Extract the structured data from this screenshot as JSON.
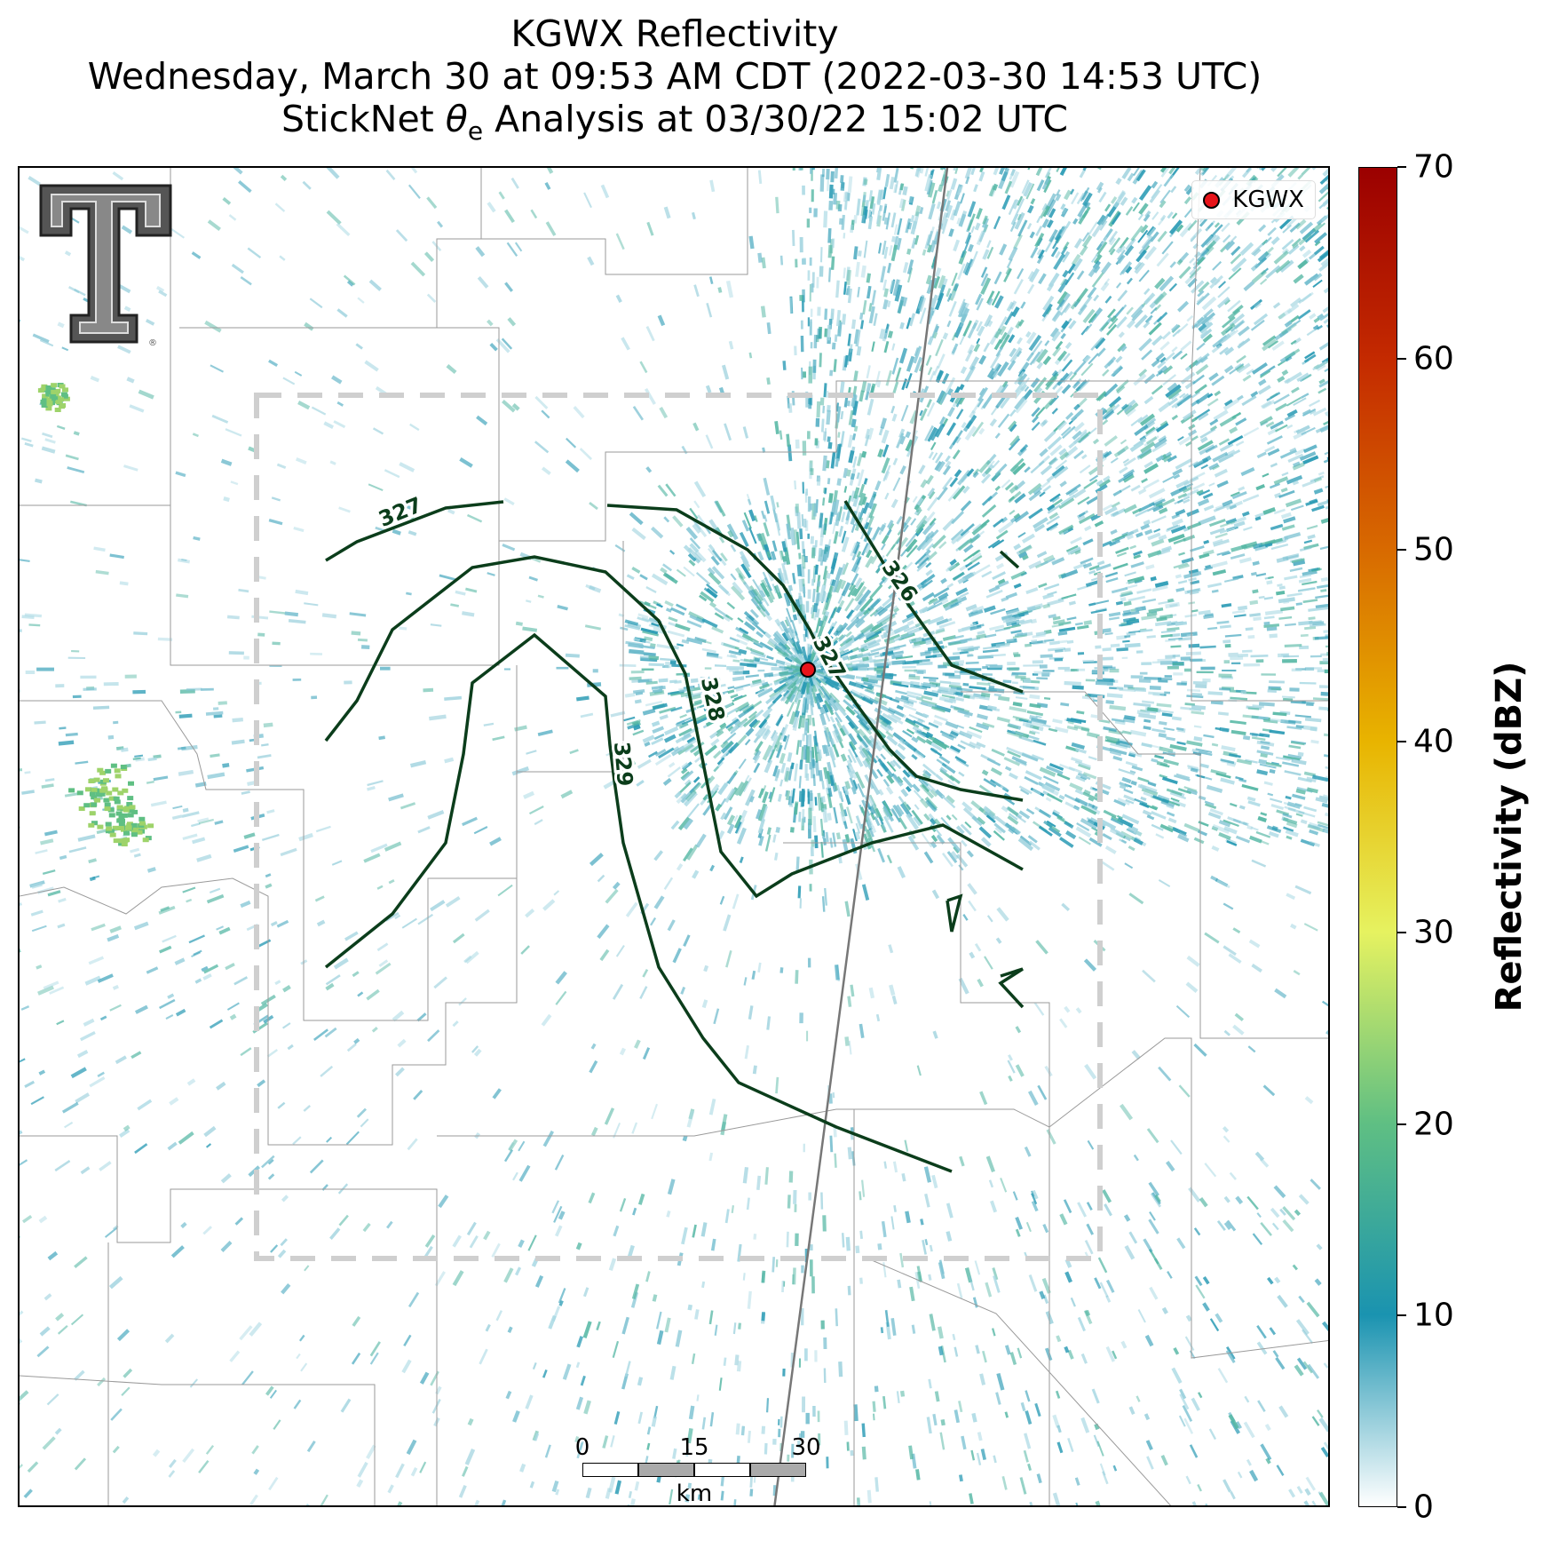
{
  "titles": {
    "line1": "KGWX Reflectivity",
    "line2": "Wednesday, March 30 at 09:53 AM CDT (2022-03-30 14:53 UTC)",
    "line3_prefix": "StickNet ",
    "line3_symbol": "θ",
    "line3_subscript": "e",
    "line3_suffix": " Analysis at 03/30/22 15:02 UTC"
  },
  "legend": {
    "label": "KGWX"
  },
  "radar_site": {
    "name": "KGWX",
    "color": "#e8141a"
  },
  "contours": {
    "color": "#0b3d1b",
    "labels": [
      "327",
      "326",
      "327",
      "328",
      "329"
    ]
  },
  "scale_bar": {
    "ticks": [
      "0",
      "15",
      "30"
    ],
    "unit": "km"
  },
  "colorbar": {
    "title": "Reflectivity (dBZ)",
    "ticks": [
      "0",
      "10",
      "20",
      "30",
      "40",
      "50",
      "60",
      "70"
    ],
    "min": 0,
    "max": 70,
    "colors": [
      "#ffffff",
      "#1a93b0",
      "#5fbf83",
      "#e6f260",
      "#e8b400",
      "#d86a00",
      "#c42a00",
      "#9b0000"
    ]
  },
  "logo": {
    "name": "Texas Tech double-T logo",
    "mark": "®"
  },
  "colors": {
    "echo_primary": "#2a9bb5",
    "echo_secondary": "#56b8a5",
    "echo_strong": "#9ed36a",
    "analysis_box": "#c8c8c8"
  }
}
